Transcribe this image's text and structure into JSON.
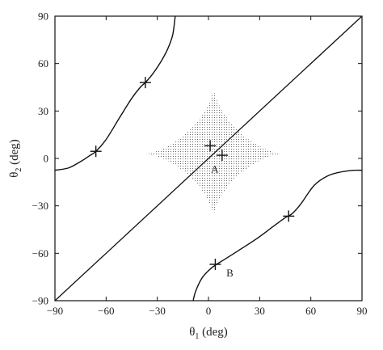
{
  "chart_data": {
    "type": "line",
    "xlabel": {
      "symbol": "θ",
      "sub": "1",
      "unit": "(deg)"
    },
    "ylabel": {
      "symbol": "θ",
      "sub": "2",
      "unit": "(deg)"
    },
    "xlim": [
      -90,
      90
    ],
    "ylim": [
      -90,
      90
    ],
    "xticks": [
      -90,
      -60,
      -30,
      0,
      30,
      60,
      90
    ],
    "yticks": [
      -90,
      -60,
      -30,
      0,
      30,
      60,
      90
    ],
    "xtick_labels": [
      "−90",
      "−60",
      "−30",
      "0",
      "30",
      "60",
      "90"
    ],
    "ytick_labels": [
      "−90",
      "−60",
      "−30",
      "0",
      "30",
      "60",
      "90"
    ],
    "grid": false,
    "series": [
      {
        "kind": "line",
        "x": [
          -90,
          90
        ],
        "y": [
          -90,
          90
        ]
      },
      {
        "kind": "curve",
        "x": [
          -90,
          -82,
          -75,
          -70,
          -66,
          -60,
          -52,
          -45,
          -40,
          -37,
          -33,
          -28,
          -24,
          -21,
          -19.5
        ],
        "y": [
          -7.5,
          -6,
          -2,
          1.5,
          4.5,
          12,
          26,
          38,
          45,
          48,
          53,
          61,
          69,
          78,
          90
        ]
      },
      {
        "kind": "curve",
        "x": [
          -9,
          -7.5,
          -4,
          0,
          4,
          10,
          18,
          28,
          38,
          45,
          49,
          54,
          62,
          70,
          78,
          85,
          90
        ],
        "y": [
          -90,
          -84,
          -76,
          -71,
          -67.5,
          -63.5,
          -58,
          -51,
          -43,
          -37.5,
          -35,
          -29,
          -17,
          -11,
          -8.5,
          -7.5,
          -7.5
        ]
      },
      {
        "kind": "shaded-region",
        "center": [
          3,
          3
        ],
        "half_width_x": 40,
        "half_height_up": 42,
        "half_height_down": 40,
        "shape": "astroid"
      }
    ],
    "markers": [
      {
        "x": -66,
        "y": 4.5
      },
      {
        "x": -37,
        "y": 48
      },
      {
        "x": 1,
        "y": 8
      },
      {
        "x": 8,
        "y": 2
      },
      {
        "x": 47,
        "y": -36.5
      },
      {
        "x": 4,
        "y": -67
      }
    ],
    "annotations": [
      {
        "text": "A",
        "x": 1.5,
        "y": -6.5
      },
      {
        "text": "B",
        "x": 10.5,
        "y": -72
      }
    ]
  }
}
